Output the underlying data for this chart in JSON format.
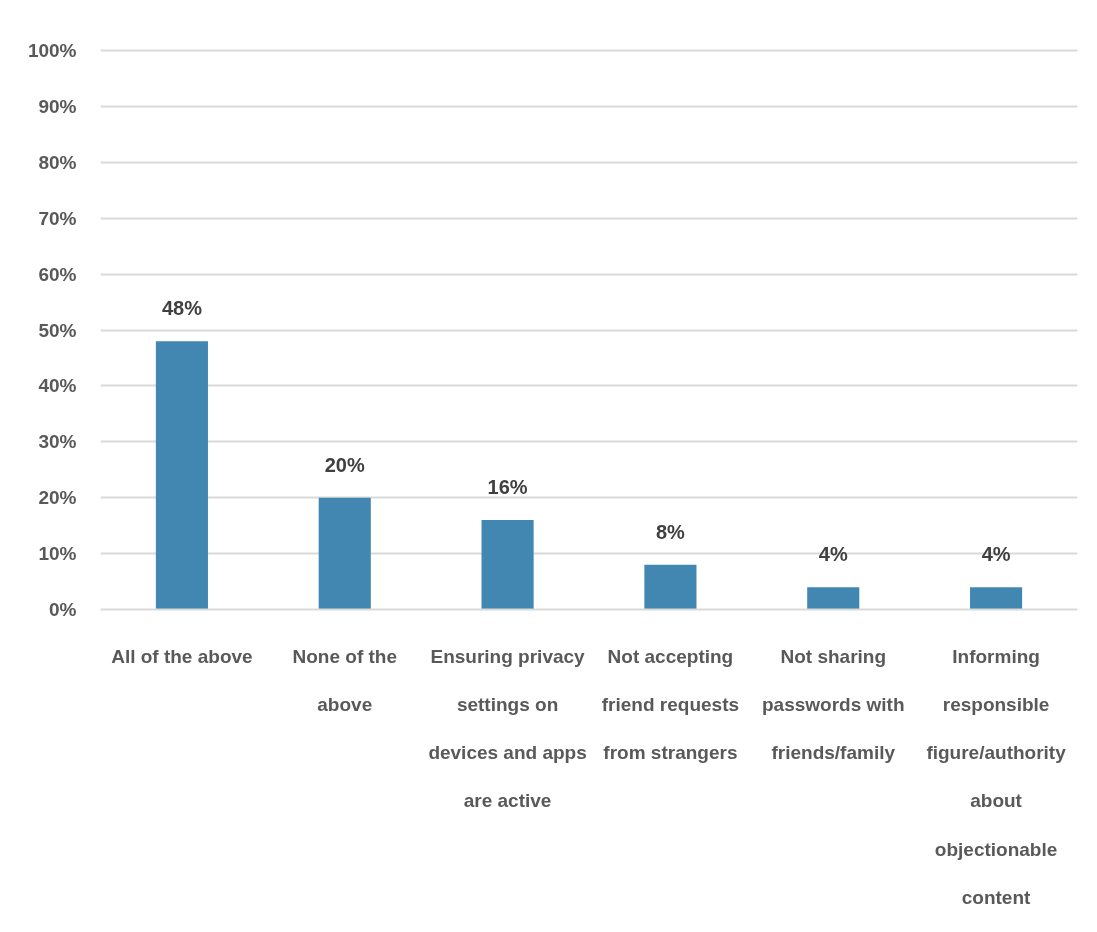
{
  "chart_data": {
    "type": "bar",
    "categories": [
      "All of the above",
      "None of the above",
      "Ensuring privacy settings on devices and apps are active",
      "Not accepting friend requests from strangers",
      "Not sharing passwords with friends/family",
      "Informing responsible figure/authority about objectionable content"
    ],
    "values": [
      48,
      20,
      16,
      8,
      4,
      4
    ],
    "value_labels": [
      "48%",
      "20%",
      "16%",
      "8%",
      "4%",
      "4%"
    ],
    "color": "#4187b1",
    "ylim": [
      0,
      100
    ],
    "yticks": [
      {
        "value": 0,
        "label": "0%"
      },
      {
        "value": 10,
        "label": "10%"
      },
      {
        "value": 20,
        "label": "20%"
      },
      {
        "value": 30,
        "label": "30%"
      },
      {
        "value": 40,
        "label": "40%"
      },
      {
        "value": 50,
        "label": "50%"
      },
      {
        "value": 60,
        "label": "60%"
      },
      {
        "value": 70,
        "label": "70%"
      },
      {
        "value": 80,
        "label": "80%"
      },
      {
        "value": 90,
        "label": "90%"
      },
      {
        "value": 100,
        "label": "100%"
      }
    ],
    "grid": "y"
  }
}
